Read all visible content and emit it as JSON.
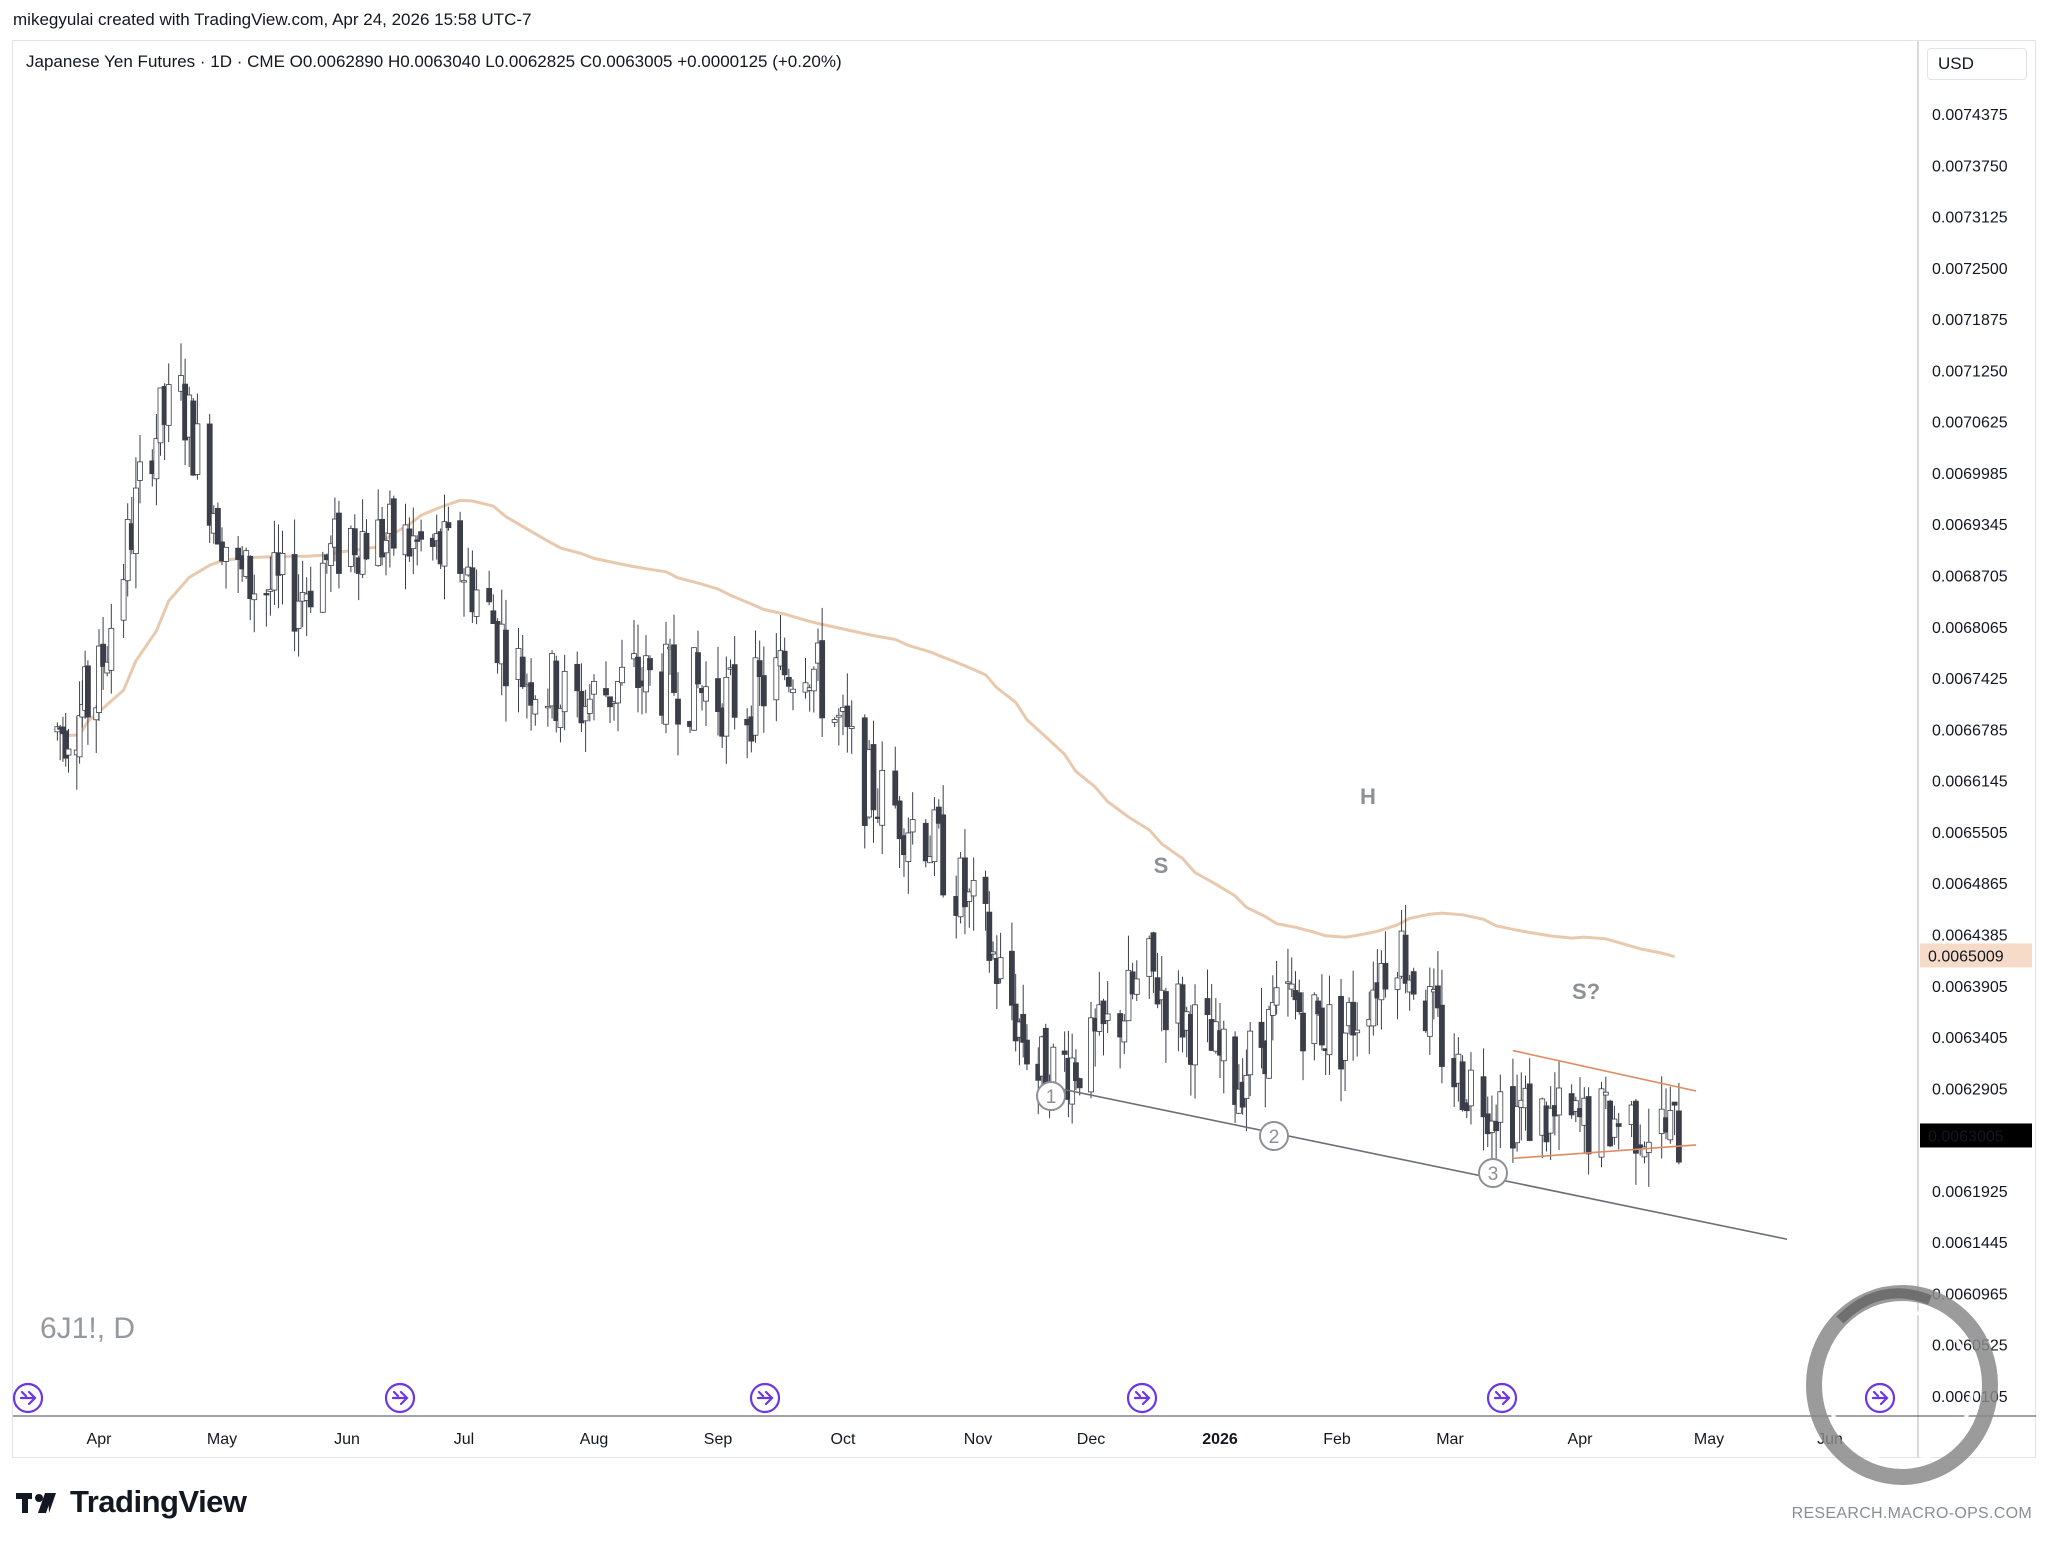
{
  "header": {
    "attribution": "mikegyulai created with TradingView.com, Apr 24, 2026 15:58 UTC-7"
  },
  "legend": {
    "text": "Japanese Yen Futures · 1D · CME  O0.0062890  H0.0063040  L0.0062825  C0.0063005  +0.0000125 (+0.20%)"
  },
  "watermark": {
    "symbol": "6J1!, D"
  },
  "currency": "USD",
  "footer": {
    "brand": "TradingView",
    "research": "RESEARCH.MACRO-OPS.COM"
  },
  "colors": {
    "candle_down": "#3b3e49",
    "candle_up": "#ffffff",
    "candle_outline": "#3b3e49",
    "moving_average": "#e9c9ad",
    "triangle_lines": "#e08a62",
    "trendline": "#6b6e76",
    "annotation": "#8e9096",
    "event_icon": "#6a37e8",
    "last_price_bg": "#000000",
    "ma_badge_bg": "#f6dcc8"
  },
  "chart_data": {
    "type": "candlestick",
    "x_axis_labels": [
      "Apr",
      "May",
      "Jun",
      "Jul",
      "Aug",
      "Sep",
      "Oct",
      "Nov",
      "Dec",
      "2026",
      "Feb",
      "Mar",
      "Apr",
      "May",
      "Jun"
    ],
    "y_axis_labels": [
      "0.0074375",
      "0.0073750",
      "0.0073125",
      "0.0072500",
      "0.0071875",
      "0.0071250",
      "0.0070625",
      "0.0069985",
      "0.0069345",
      "0.0068705",
      "0.0068065",
      "0.0067425",
      "0.0066785",
      "0.0066145",
      "0.0065505",
      "0.0064865",
      "0.0064385",
      "0.0063905",
      "0.0063405",
      "0.0062905",
      "0.0062405",
      "0.0061925",
      "0.0061445",
      "0.0060965",
      "0.0060525",
      "0.0060105"
    ],
    "ohlc_approx_weekly": [
      {
        "week": "2025-03-17",
        "close": 0.00675
      },
      {
        "week": "2025-03-31",
        "close": 0.00679
      },
      {
        "week": "2025-04-14",
        "close": 0.00708
      },
      {
        "week": "2025-04-21",
        "close": 0.00712
      },
      {
        "week": "2025-05-05",
        "close": 0.00692
      },
      {
        "week": "2025-05-19",
        "close": 0.0069
      },
      {
        "week": "2025-06-02",
        "close": 0.00697
      },
      {
        "week": "2025-06-16",
        "close": 0.00696
      },
      {
        "week": "2025-06-30",
        "close": 0.00694
      },
      {
        "week": "2025-07-14",
        "close": 0.00682
      },
      {
        "week": "2025-07-28",
        "close": 0.00678
      },
      {
        "week": "2025-08-11",
        "close": 0.00681
      },
      {
        "week": "2025-08-25",
        "close": 0.0068
      },
      {
        "week": "2025-09-08",
        "close": 0.00678
      },
      {
        "week": "2025-09-22",
        "close": 0.00684
      },
      {
        "week": "2025-10-06",
        "close": 0.00669
      },
      {
        "week": "2025-10-20",
        "close": 0.00664
      },
      {
        "week": "2025-11-03",
        "close": 0.00652
      },
      {
        "week": "2025-11-17",
        "close": 0.00637
      },
      {
        "week": "2025-12-01",
        "close": 0.00639
      },
      {
        "week": "2025-12-15",
        "close": 0.00648
      },
      {
        "week": "2026-01-05",
        "close": 0.00636
      },
      {
        "week": "2026-01-19",
        "close": 0.00645
      },
      {
        "week": "2026-02-02",
        "close": 0.00641
      },
      {
        "week": "2026-02-16",
        "close": 0.00652
      },
      {
        "week": "2026-03-02",
        "close": 0.00637
      },
      {
        "week": "2026-03-16",
        "close": 0.00633
      },
      {
        "week": "2026-03-30",
        "close": 0.00631
      },
      {
        "week": "2026-04-13",
        "close": 0.00632
      },
      {
        "week": "2026-04-24",
        "close": 0.0063005
      }
    ],
    "moving_average_last": "0.0065009",
    "last_price": "0.0063005",
    "annotations": {
      "shoulder_left": "S",
      "head": "H",
      "shoulder_right": "S?",
      "wave_1": "1",
      "wave_2": "2",
      "wave_3": "3"
    }
  }
}
